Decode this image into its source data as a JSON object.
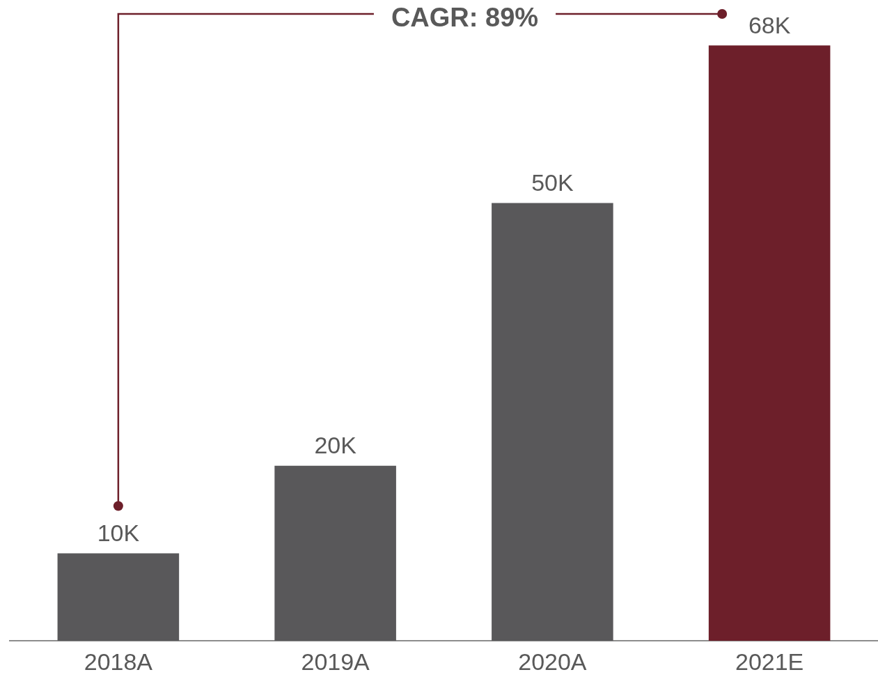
{
  "chart_data": {
    "type": "bar",
    "categories": [
      "2018A",
      "2019A",
      "2020A",
      "2021E"
    ],
    "values": [
      10000,
      20000,
      50000,
      68000
    ],
    "colors": [
      "#59585a",
      "#59585a",
      "#59585a",
      "#6d1f2a"
    ],
    "value_labels": [
      "10K",
      "20K",
      "50K",
      "68K"
    ],
    "annotations": [
      "CAGR: 89%"
    ],
    "grid": false,
    "legend": false,
    "tick_labels": "x"
  }
}
